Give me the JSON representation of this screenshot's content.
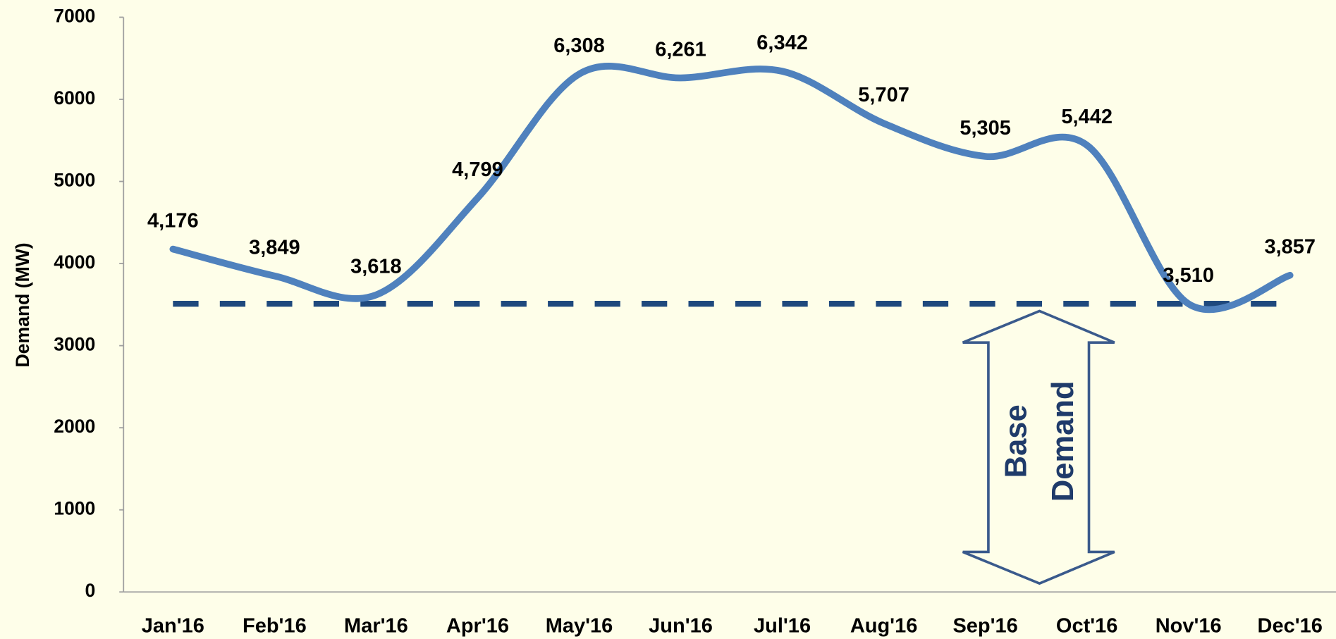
{
  "chart_data": {
    "type": "line",
    "y_axis_label": "Demand (MW)",
    "categories": [
      "Jan'16",
      "Feb'16",
      "Mar'16",
      "Apr'16",
      "May'16",
      "Jun'16",
      "Jul'16",
      "Aug'16",
      "Sep'16",
      "Oct'16",
      "Nov'16",
      "Dec'16"
    ],
    "series": [
      {
        "name": "Demand",
        "color": "#4f81bd",
        "values": [
          4176,
          3849,
          3618,
          4799,
          6308,
          6261,
          6342,
          5707,
          5305,
          5442,
          3510,
          3857
        ],
        "value_labels": [
          "4,176",
          "3,849",
          "3,618",
          "4,799",
          "6,308",
          "6,261",
          "6,342",
          "5,707",
          "5,305",
          "5,442",
          "3,510",
          "3,857"
        ]
      }
    ],
    "base_line": {
      "value": 3510,
      "color": "#1f497d"
    },
    "annotation": {
      "lines": [
        "Base",
        "Demand"
      ]
    },
    "ylim": [
      0,
      7000
    ],
    "yticks": [
      0,
      1000,
      2000,
      3000,
      4000,
      5000,
      6000,
      7000
    ],
    "grid": false
  }
}
